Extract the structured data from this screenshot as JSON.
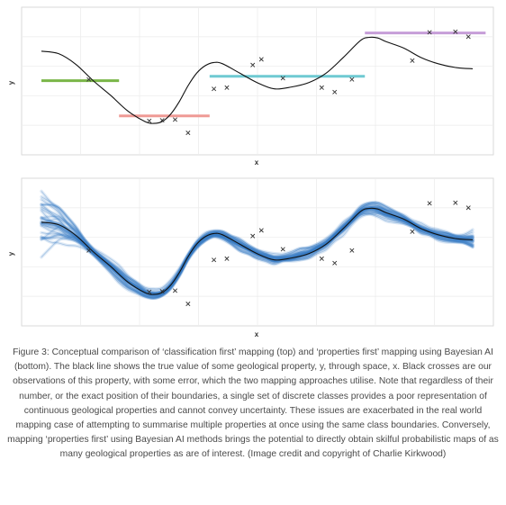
{
  "chart_data": [
    {
      "type": "line",
      "panel": "top",
      "xlabel": "x",
      "ylabel": "y",
      "xlim": [
        0,
        1
      ],
      "ylim": [
        -1,
        1.35
      ],
      "grid": true,
      "series": [
        {
          "role": "true-property-line",
          "color": "#111111",
          "x": [
            0.0,
            0.04,
            0.08,
            0.12,
            0.16,
            0.2,
            0.24,
            0.26,
            0.28,
            0.3,
            0.32,
            0.34,
            0.36,
            0.38,
            0.4,
            0.42,
            0.46,
            0.5,
            0.54,
            0.58,
            0.62,
            0.66,
            0.7,
            0.74,
            0.76,
            0.78,
            0.8,
            0.84,
            0.88,
            0.92,
            0.96,
            1.0
          ],
          "y": [
            0.65,
            0.61,
            0.44,
            0.18,
            -0.05,
            -0.3,
            -0.47,
            -0.5,
            -0.47,
            -0.35,
            -0.15,
            0.1,
            0.3,
            0.42,
            0.47,
            0.45,
            0.3,
            0.15,
            0.05,
            0.08,
            0.15,
            0.3,
            0.55,
            0.82,
            0.87,
            0.86,
            0.8,
            0.7,
            0.55,
            0.45,
            0.39,
            0.37
          ]
        }
      ],
      "observations": {
        "x": [
          0.11,
          0.25,
          0.28,
          0.31,
          0.34,
          0.4,
          0.43,
          0.49,
          0.51,
          0.56,
          0.65,
          0.68,
          0.72,
          0.86,
          0.9,
          0.96,
          0.99
        ],
        "y": [
          0.2,
          -0.46,
          -0.45,
          -0.44,
          -0.65,
          0.05,
          0.07,
          0.43,
          0.52,
          0.22,
          0.07,
          0.0,
          0.2,
          0.5,
          0.95,
          0.96,
          0.88
        ]
      },
      "class_segments": [
        {
          "x_start": 0.0,
          "x_end": 0.18,
          "y": 0.18,
          "color": "#7ab648"
        },
        {
          "x_start": 0.18,
          "x_end": 0.39,
          "y": -0.38,
          "color": "#ef9a95"
        },
        {
          "x_start": 0.39,
          "x_end": 0.75,
          "y": 0.25,
          "color": "#6fcad2"
        },
        {
          "x_start": 0.75,
          "x_end": 1.03,
          "y": 0.94,
          "color": "#c69ed8"
        }
      ]
    },
    {
      "type": "line",
      "panel": "bottom",
      "xlabel": "x",
      "ylabel": "y",
      "xlim": [
        0,
        1
      ],
      "ylim": [
        -1,
        1.35
      ],
      "grid": true,
      "series": [
        {
          "role": "true-property-line",
          "color": "#111111",
          "x": [
            0.0,
            0.04,
            0.08,
            0.12,
            0.16,
            0.2,
            0.24,
            0.26,
            0.28,
            0.3,
            0.32,
            0.34,
            0.36,
            0.38,
            0.4,
            0.42,
            0.46,
            0.5,
            0.54,
            0.58,
            0.62,
            0.66,
            0.7,
            0.74,
            0.76,
            0.78,
            0.8,
            0.84,
            0.88,
            0.92,
            0.96,
            1.0
          ],
          "y": [
            0.65,
            0.61,
            0.44,
            0.18,
            -0.05,
            -0.3,
            -0.47,
            -0.5,
            -0.47,
            -0.35,
            -0.15,
            0.1,
            0.3,
            0.42,
            0.47,
            0.45,
            0.3,
            0.15,
            0.05,
            0.08,
            0.15,
            0.3,
            0.55,
            0.82,
            0.87,
            0.86,
            0.8,
            0.7,
            0.55,
            0.45,
            0.39,
            0.37
          ]
        }
      ],
      "observations": {
        "x": [
          0.11,
          0.25,
          0.28,
          0.31,
          0.34,
          0.4,
          0.43,
          0.49,
          0.51,
          0.56,
          0.65,
          0.68,
          0.72,
          0.86,
          0.9,
          0.96,
          0.99
        ],
        "y": [
          0.2,
          -0.46,
          -0.45,
          -0.44,
          -0.65,
          0.05,
          0.07,
          0.43,
          0.52,
          0.22,
          0.07,
          0.0,
          0.2,
          0.5,
          0.95,
          0.96,
          0.88
        ]
      },
      "posterior_band": {
        "color": "#3b7dc4",
        "sample_count": 28
      }
    }
  ],
  "caption": "Figure 3: Conceptual comparison of ‘classification first’ mapping (top) and ‘properties first’ mapping using Bayesian AI (bottom). The black line shows the true value of some geological property, y, through space, x. Black crosses are our observations of this property, with some error, which the two mapping approaches utilise. Note that regardless of their number, or the exact position of their boundaries, a single set of discrete classes provides a poor representation of continuous geological properties and cannot convey uncertainty. These issues are exacerbated in the real world mapping case of attempting to summarise multiple properties at once using the same class boundaries. Conversely, mapping ‘properties first’ using Bayesian AI methods brings the potential to directly obtain skilful probabilistic maps of as many geological properties as are of interest. (Image credit and copyright of Charlie Kirkwood)"
}
